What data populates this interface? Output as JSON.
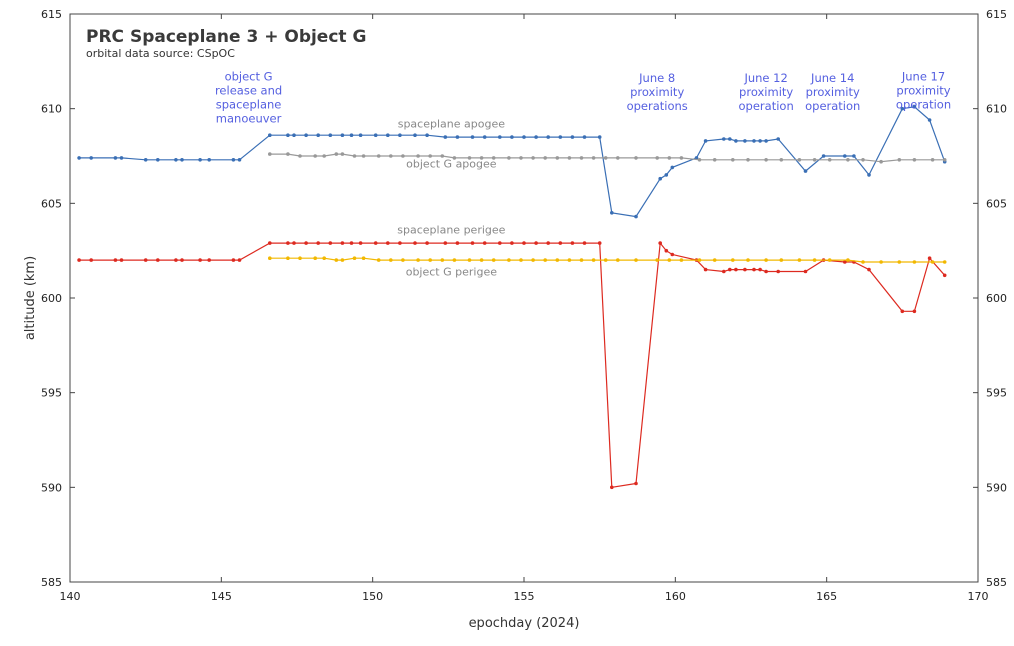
{
  "chart_data": {
    "type": "line",
    "title": "PRC Spaceplane 3 + Object G",
    "subtitle": "orbital data source: CSpOC",
    "xlabel": "epochday (2024)",
    "ylabel": "altitude (km)",
    "xlim": [
      140,
      170
    ],
    "ylim": [
      585,
      615
    ],
    "xticks": [
      140,
      145,
      150,
      155,
      160,
      165,
      170
    ],
    "yticks": [
      585,
      590,
      595,
      600,
      605,
      610,
      615
    ],
    "grid": false,
    "series": [
      {
        "name": "spaceplane apogee",
        "color": "#3a6fb5",
        "points": [
          [
            140.3,
            607.4
          ],
          [
            140.7,
            607.4
          ],
          [
            141.5,
            607.4
          ],
          [
            141.7,
            607.4
          ],
          [
            142.5,
            607.3
          ],
          [
            142.9,
            607.3
          ],
          [
            143.5,
            607.3
          ],
          [
            143.7,
            607.3
          ],
          [
            144.3,
            607.3
          ],
          [
            144.6,
            607.3
          ],
          [
            145.4,
            607.3
          ],
          [
            145.6,
            607.3
          ],
          [
            146.6,
            608.6
          ],
          [
            147.2,
            608.6
          ],
          [
            147.4,
            608.6
          ],
          [
            147.8,
            608.6
          ],
          [
            148.2,
            608.6
          ],
          [
            148.6,
            608.6
          ],
          [
            149.0,
            608.6
          ],
          [
            149.3,
            608.6
          ],
          [
            149.6,
            608.6
          ],
          [
            150.1,
            608.6
          ],
          [
            150.5,
            608.6
          ],
          [
            150.9,
            608.6
          ],
          [
            151.4,
            608.6
          ],
          [
            151.8,
            608.6
          ],
          [
            152.4,
            608.5
          ],
          [
            152.8,
            608.5
          ],
          [
            153.3,
            608.5
          ],
          [
            153.7,
            608.5
          ],
          [
            154.2,
            608.5
          ],
          [
            154.6,
            608.5
          ],
          [
            155.0,
            608.5
          ],
          [
            155.4,
            608.5
          ],
          [
            155.8,
            608.5
          ],
          [
            156.2,
            608.5
          ],
          [
            156.6,
            608.5
          ],
          [
            157.0,
            608.5
          ],
          [
            157.5,
            608.5
          ],
          [
            157.9,
            604.5
          ],
          [
            158.7,
            604.3
          ],
          [
            159.5,
            606.3
          ],
          [
            159.7,
            606.5
          ],
          [
            159.9,
            606.9
          ],
          [
            160.7,
            607.4
          ],
          [
            161.0,
            608.3
          ],
          [
            161.6,
            608.4
          ],
          [
            161.8,
            608.4
          ],
          [
            162.0,
            608.3
          ],
          [
            162.3,
            608.3
          ],
          [
            162.6,
            608.3
          ],
          [
            162.8,
            608.3
          ],
          [
            163.0,
            608.3
          ],
          [
            163.4,
            608.4
          ],
          [
            164.3,
            606.7
          ],
          [
            164.9,
            607.5
          ],
          [
            165.6,
            607.5
          ],
          [
            165.9,
            607.5
          ],
          [
            166.4,
            606.5
          ],
          [
            167.5,
            610.0
          ],
          [
            167.9,
            610.1
          ],
          [
            168.4,
            609.4
          ],
          [
            168.9,
            607.2
          ]
        ]
      },
      {
        "name": "object G apogee",
        "color": "#999999",
        "points": [
          [
            146.6,
            607.6
          ],
          [
            147.2,
            607.6
          ],
          [
            147.6,
            607.5
          ],
          [
            148.1,
            607.5
          ],
          [
            148.4,
            607.5
          ],
          [
            148.8,
            607.6
          ],
          [
            149.0,
            607.6
          ],
          [
            149.4,
            607.5
          ],
          [
            149.7,
            607.5
          ],
          [
            150.2,
            607.5
          ],
          [
            150.6,
            607.5
          ],
          [
            151.0,
            607.5
          ],
          [
            151.5,
            607.5
          ],
          [
            151.9,
            607.5
          ],
          [
            152.3,
            607.5
          ],
          [
            152.7,
            607.4
          ],
          [
            153.2,
            607.4
          ],
          [
            153.6,
            607.4
          ],
          [
            154.0,
            607.4
          ],
          [
            154.5,
            607.4
          ],
          [
            154.9,
            607.4
          ],
          [
            155.3,
            607.4
          ],
          [
            155.7,
            607.4
          ],
          [
            156.1,
            607.4
          ],
          [
            156.5,
            607.4
          ],
          [
            156.9,
            607.4
          ],
          [
            157.3,
            607.4
          ],
          [
            157.7,
            607.4
          ],
          [
            158.1,
            607.4
          ],
          [
            158.7,
            607.4
          ],
          [
            159.4,
            607.4
          ],
          [
            159.8,
            607.4
          ],
          [
            160.2,
            607.4
          ],
          [
            160.8,
            607.3
          ],
          [
            161.3,
            607.3
          ],
          [
            161.9,
            607.3
          ],
          [
            162.4,
            607.3
          ],
          [
            163.0,
            607.3
          ],
          [
            163.5,
            607.3
          ],
          [
            164.1,
            607.3
          ],
          [
            164.6,
            607.3
          ],
          [
            165.1,
            607.3
          ],
          [
            165.7,
            607.3
          ],
          [
            166.2,
            607.3
          ],
          [
            166.8,
            607.2
          ],
          [
            167.4,
            607.3
          ],
          [
            167.9,
            607.3
          ],
          [
            168.5,
            607.3
          ],
          [
            168.9,
            607.3
          ]
        ]
      },
      {
        "name": "spaceplane perigee",
        "color": "#dd2a20",
        "points": [
          [
            140.3,
            602.0
          ],
          [
            140.7,
            602.0
          ],
          [
            141.5,
            602.0
          ],
          [
            141.7,
            602.0
          ],
          [
            142.5,
            602.0
          ],
          [
            142.9,
            602.0
          ],
          [
            143.5,
            602.0
          ],
          [
            143.7,
            602.0
          ],
          [
            144.3,
            602.0
          ],
          [
            144.6,
            602.0
          ],
          [
            145.4,
            602.0
          ],
          [
            145.6,
            602.0
          ],
          [
            146.6,
            602.9
          ],
          [
            147.2,
            602.9
          ],
          [
            147.4,
            602.9
          ],
          [
            147.8,
            602.9
          ],
          [
            148.2,
            602.9
          ],
          [
            148.6,
            602.9
          ],
          [
            149.0,
            602.9
          ],
          [
            149.3,
            602.9
          ],
          [
            149.6,
            602.9
          ],
          [
            150.1,
            602.9
          ],
          [
            150.5,
            602.9
          ],
          [
            150.9,
            602.9
          ],
          [
            151.4,
            602.9
          ],
          [
            151.8,
            602.9
          ],
          [
            152.4,
            602.9
          ],
          [
            152.8,
            602.9
          ],
          [
            153.3,
            602.9
          ],
          [
            153.7,
            602.9
          ],
          [
            154.2,
            602.9
          ],
          [
            154.6,
            602.9
          ],
          [
            155.0,
            602.9
          ],
          [
            155.4,
            602.9
          ],
          [
            155.8,
            602.9
          ],
          [
            156.2,
            602.9
          ],
          [
            156.6,
            602.9
          ],
          [
            157.0,
            602.9
          ],
          [
            157.5,
            602.9
          ],
          [
            157.9,
            590.0
          ],
          [
            158.7,
            590.2
          ],
          [
            159.5,
            602.9
          ],
          [
            159.7,
            602.5
          ],
          [
            159.9,
            602.3
          ],
          [
            160.7,
            602.0
          ],
          [
            161.0,
            601.5
          ],
          [
            161.6,
            601.4
          ],
          [
            161.8,
            601.5
          ],
          [
            162.0,
            601.5
          ],
          [
            162.3,
            601.5
          ],
          [
            162.6,
            601.5
          ],
          [
            162.8,
            601.5
          ],
          [
            163.0,
            601.4
          ],
          [
            163.4,
            601.4
          ],
          [
            164.3,
            601.4
          ],
          [
            164.9,
            602.0
          ],
          [
            165.6,
            601.9
          ],
          [
            165.9,
            601.9
          ],
          [
            166.4,
            601.5
          ],
          [
            167.5,
            599.3
          ],
          [
            167.9,
            599.3
          ],
          [
            168.4,
            602.1
          ],
          [
            168.9,
            601.2
          ]
        ]
      },
      {
        "name": "object G perigee",
        "color": "#f2b800",
        "points": [
          [
            146.6,
            602.1
          ],
          [
            147.2,
            602.1
          ],
          [
            147.6,
            602.1
          ],
          [
            148.1,
            602.1
          ],
          [
            148.4,
            602.1
          ],
          [
            148.8,
            602.0
          ],
          [
            149.0,
            602.0
          ],
          [
            149.4,
            602.1
          ],
          [
            149.7,
            602.1
          ],
          [
            150.2,
            602.0
          ],
          [
            150.6,
            602.0
          ],
          [
            151.0,
            602.0
          ],
          [
            151.5,
            602.0
          ],
          [
            151.9,
            602.0
          ],
          [
            152.3,
            602.0
          ],
          [
            152.7,
            602.0
          ],
          [
            153.2,
            602.0
          ],
          [
            153.6,
            602.0
          ],
          [
            154.0,
            602.0
          ],
          [
            154.5,
            602.0
          ],
          [
            154.9,
            602.0
          ],
          [
            155.3,
            602.0
          ],
          [
            155.7,
            602.0
          ],
          [
            156.1,
            602.0
          ],
          [
            156.5,
            602.0
          ],
          [
            156.9,
            602.0
          ],
          [
            157.3,
            602.0
          ],
          [
            157.7,
            602.0
          ],
          [
            158.1,
            602.0
          ],
          [
            158.7,
            602.0
          ],
          [
            159.4,
            602.0
          ],
          [
            159.8,
            602.0
          ],
          [
            160.2,
            602.0
          ],
          [
            160.8,
            602.0
          ],
          [
            161.3,
            602.0
          ],
          [
            161.9,
            602.0
          ],
          [
            162.4,
            602.0
          ],
          [
            163.0,
            602.0
          ],
          [
            163.5,
            602.0
          ],
          [
            164.1,
            602.0
          ],
          [
            164.6,
            602.0
          ],
          [
            165.1,
            602.0
          ],
          [
            165.7,
            602.0
          ],
          [
            166.2,
            601.9
          ],
          [
            166.8,
            601.9
          ],
          [
            167.4,
            601.9
          ],
          [
            167.9,
            601.9
          ],
          [
            168.5,
            601.9
          ],
          [
            168.9,
            601.9
          ]
        ]
      }
    ],
    "series_labels": [
      {
        "text": "spaceplane apogee",
        "x": 152.6,
        "y": 609.0
      },
      {
        "text": "object G apogee",
        "x": 152.6,
        "y": 606.9
      },
      {
        "text": "spaceplane perigee",
        "x": 152.6,
        "y": 603.4
      },
      {
        "text": "object G perigee",
        "x": 152.6,
        "y": 601.2
      }
    ],
    "annotations": [
      {
        "lines": [
          "object G",
          "release and",
          "spaceplane",
          "manoeuver"
        ],
        "x": 145.9,
        "y": 611.5
      },
      {
        "lines": [
          "June 8",
          "proximity",
          "operations"
        ],
        "x": 159.4,
        "y": 611.4
      },
      {
        "lines": [
          "June 12",
          "proximity",
          "operation"
        ],
        "x": 163.0,
        "y": 611.4
      },
      {
        "lines": [
          "June 14",
          "proximity",
          "operation"
        ],
        "x": 165.2,
        "y": 611.4
      },
      {
        "lines": [
          "June 17",
          "proximity",
          "operation"
        ],
        "x": 168.2,
        "y": 611.5
      }
    ]
  }
}
